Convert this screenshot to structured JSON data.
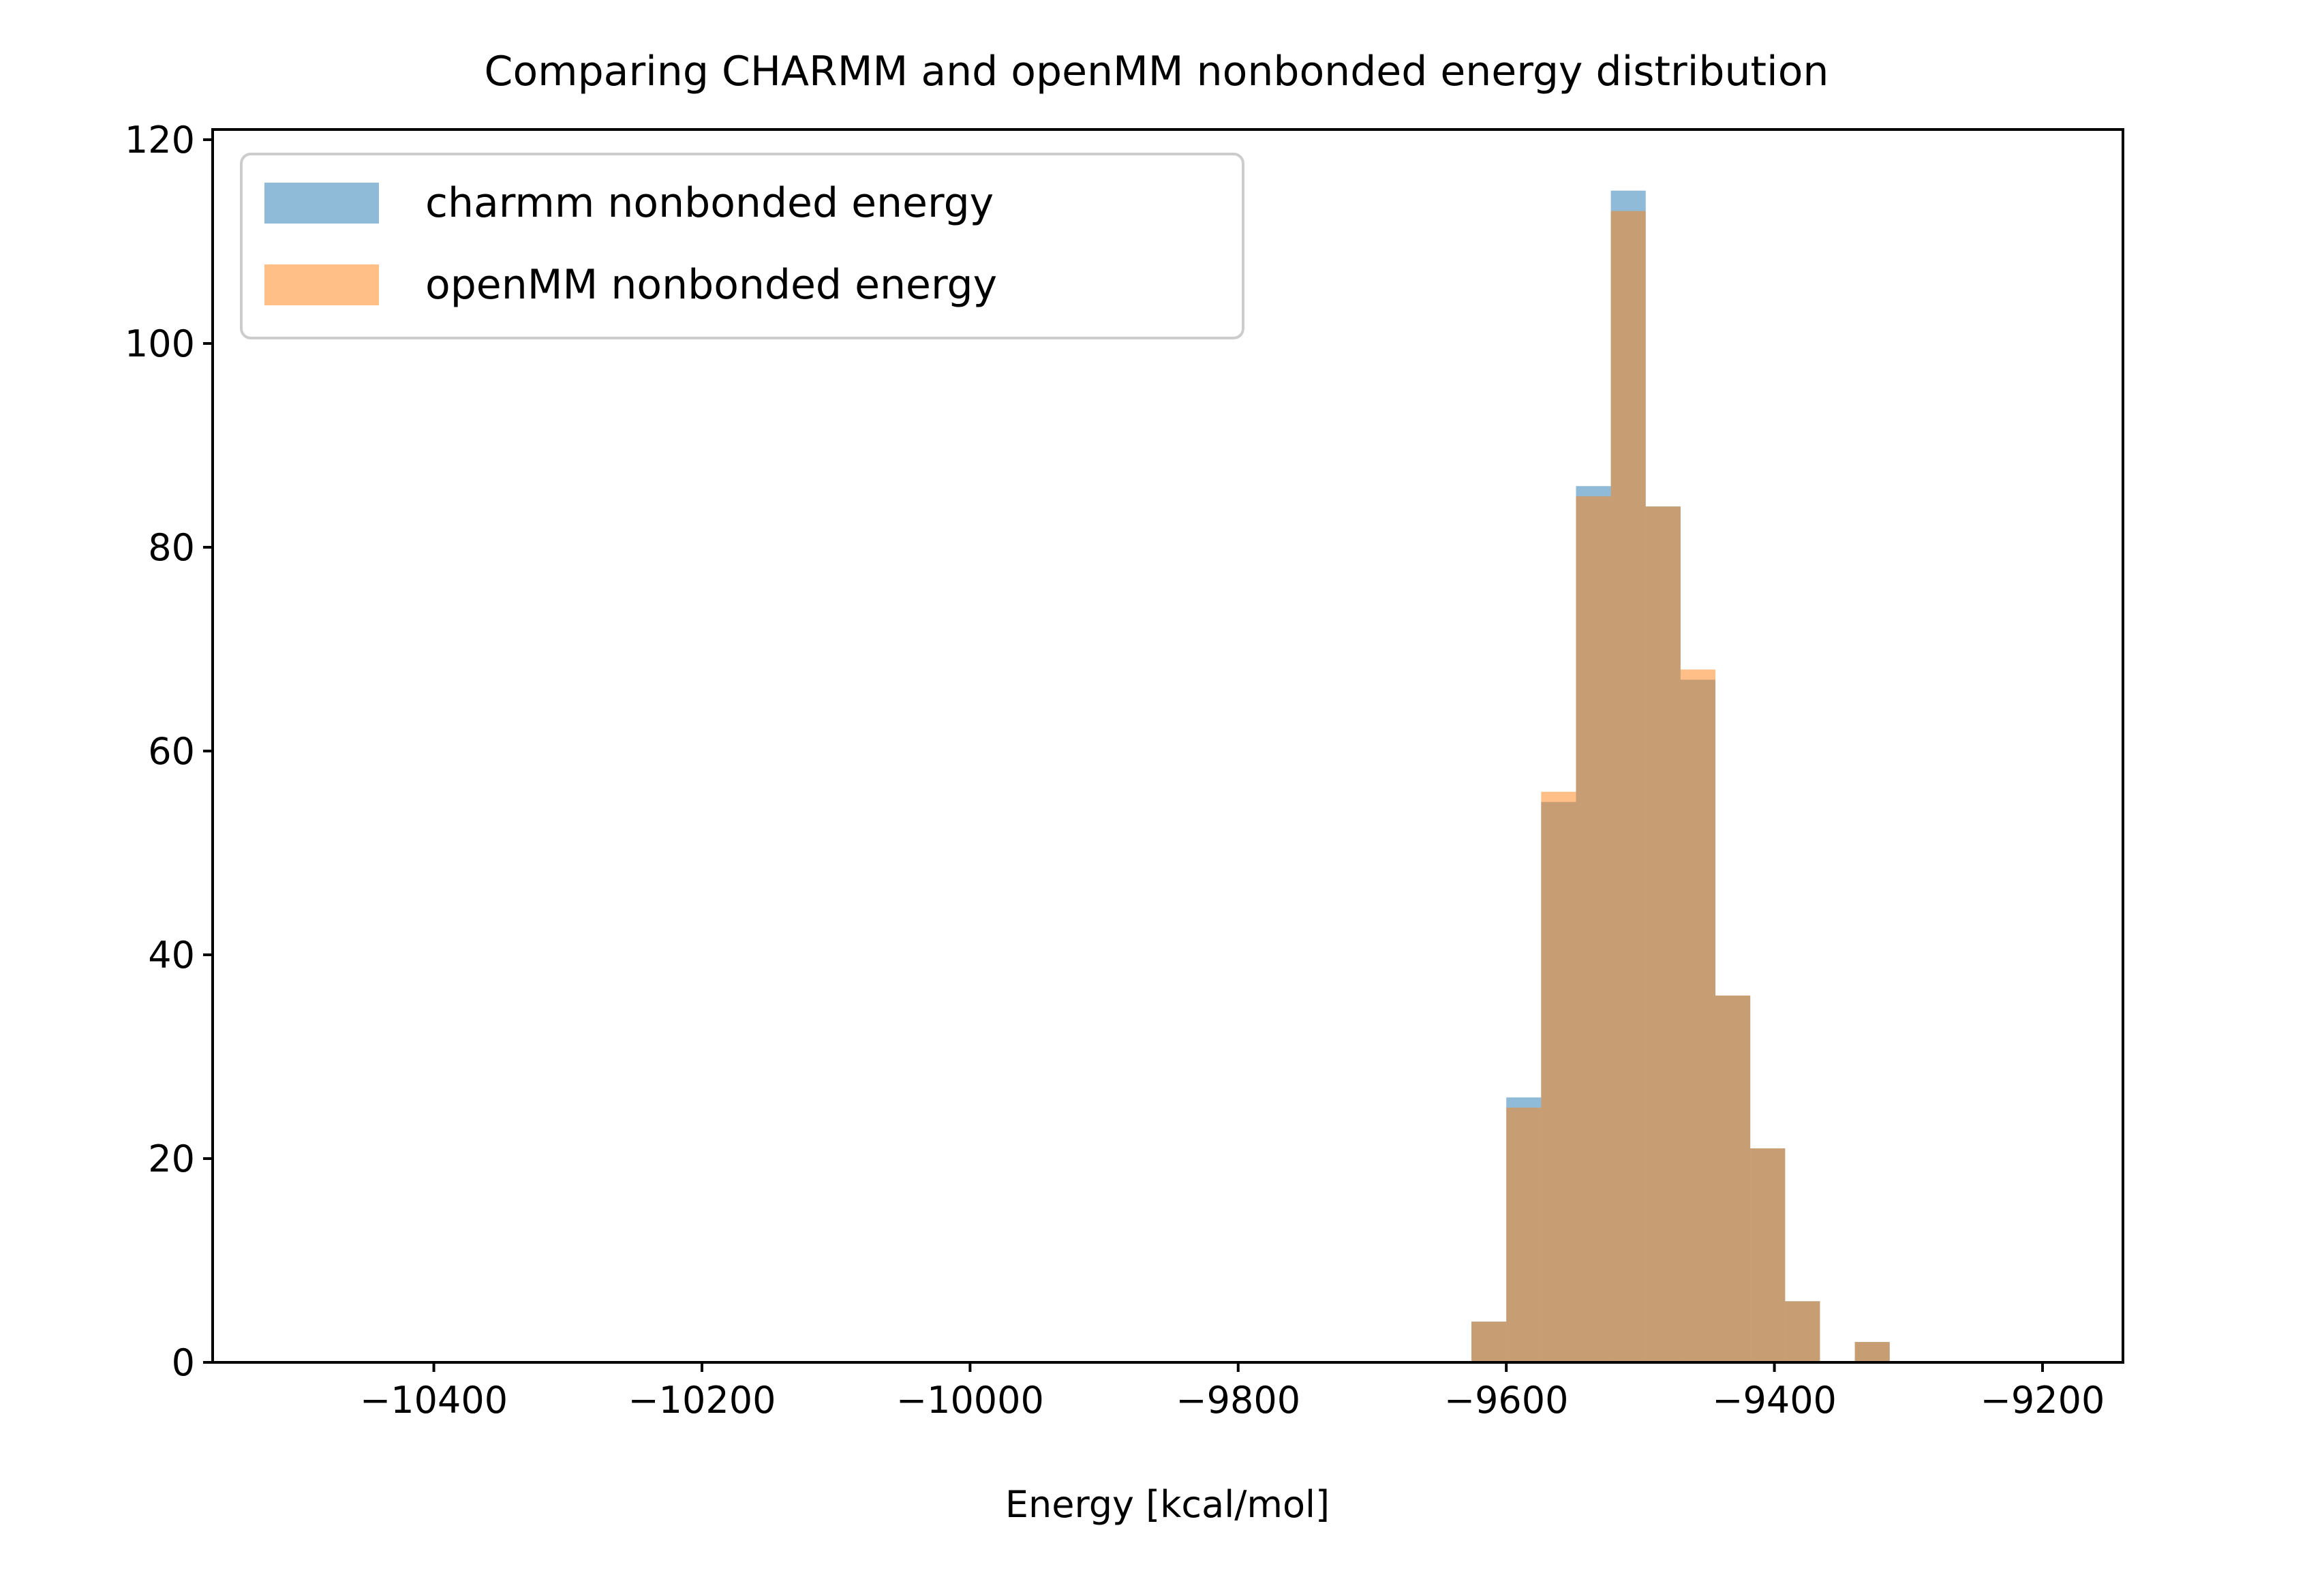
{
  "chart_data": {
    "type": "bar",
    "title": "Comparing CHARMM and openMM nonbonded energy distribution",
    "xlabel": "Energy [kcal/mol]",
    "ylabel": "",
    "xlim": [
      -10565,
      -9140
    ],
    "ylim": [
      0,
      121
    ],
    "x_ticks": [
      -10400,
      -10200,
      -10000,
      -9800,
      -9600,
      -9400,
      -9200
    ],
    "x_tick_labels": [
      "−10400",
      "−10200",
      "−10000",
      "−9800",
      "−9600",
      "−9400",
      "−9200"
    ],
    "y_ticks": [
      0,
      20,
      40,
      60,
      80,
      100,
      120
    ],
    "y_tick_labels": [
      "0",
      "20",
      "40",
      "60",
      "80",
      "100",
      "120"
    ],
    "grid": false,
    "legend_position": "top-left",
    "bin_edges": [
      -9626,
      -9600,
      -9574,
      -9548,
      -9522,
      -9496,
      -9470,
      -9444,
      -9418,
      -9392,
      -9366,
      -9340,
      -9314,
      -9288
    ],
    "series": [
      {
        "name": "charmm nonbonded energy",
        "color": "#1f77b4",
        "opacity": 0.5,
        "values": [
          4,
          26,
          55,
          86,
          115,
          84,
          67,
          36,
          21,
          6,
          0,
          2,
          0
        ]
      },
      {
        "name": "openMM nonbonded energy",
        "color": "#ff7f0e",
        "opacity": 0.5,
        "values": [
          4,
          25,
          56,
          85,
          113,
          84,
          68,
          36,
          21,
          6,
          0,
          2,
          0
        ]
      }
    ]
  }
}
